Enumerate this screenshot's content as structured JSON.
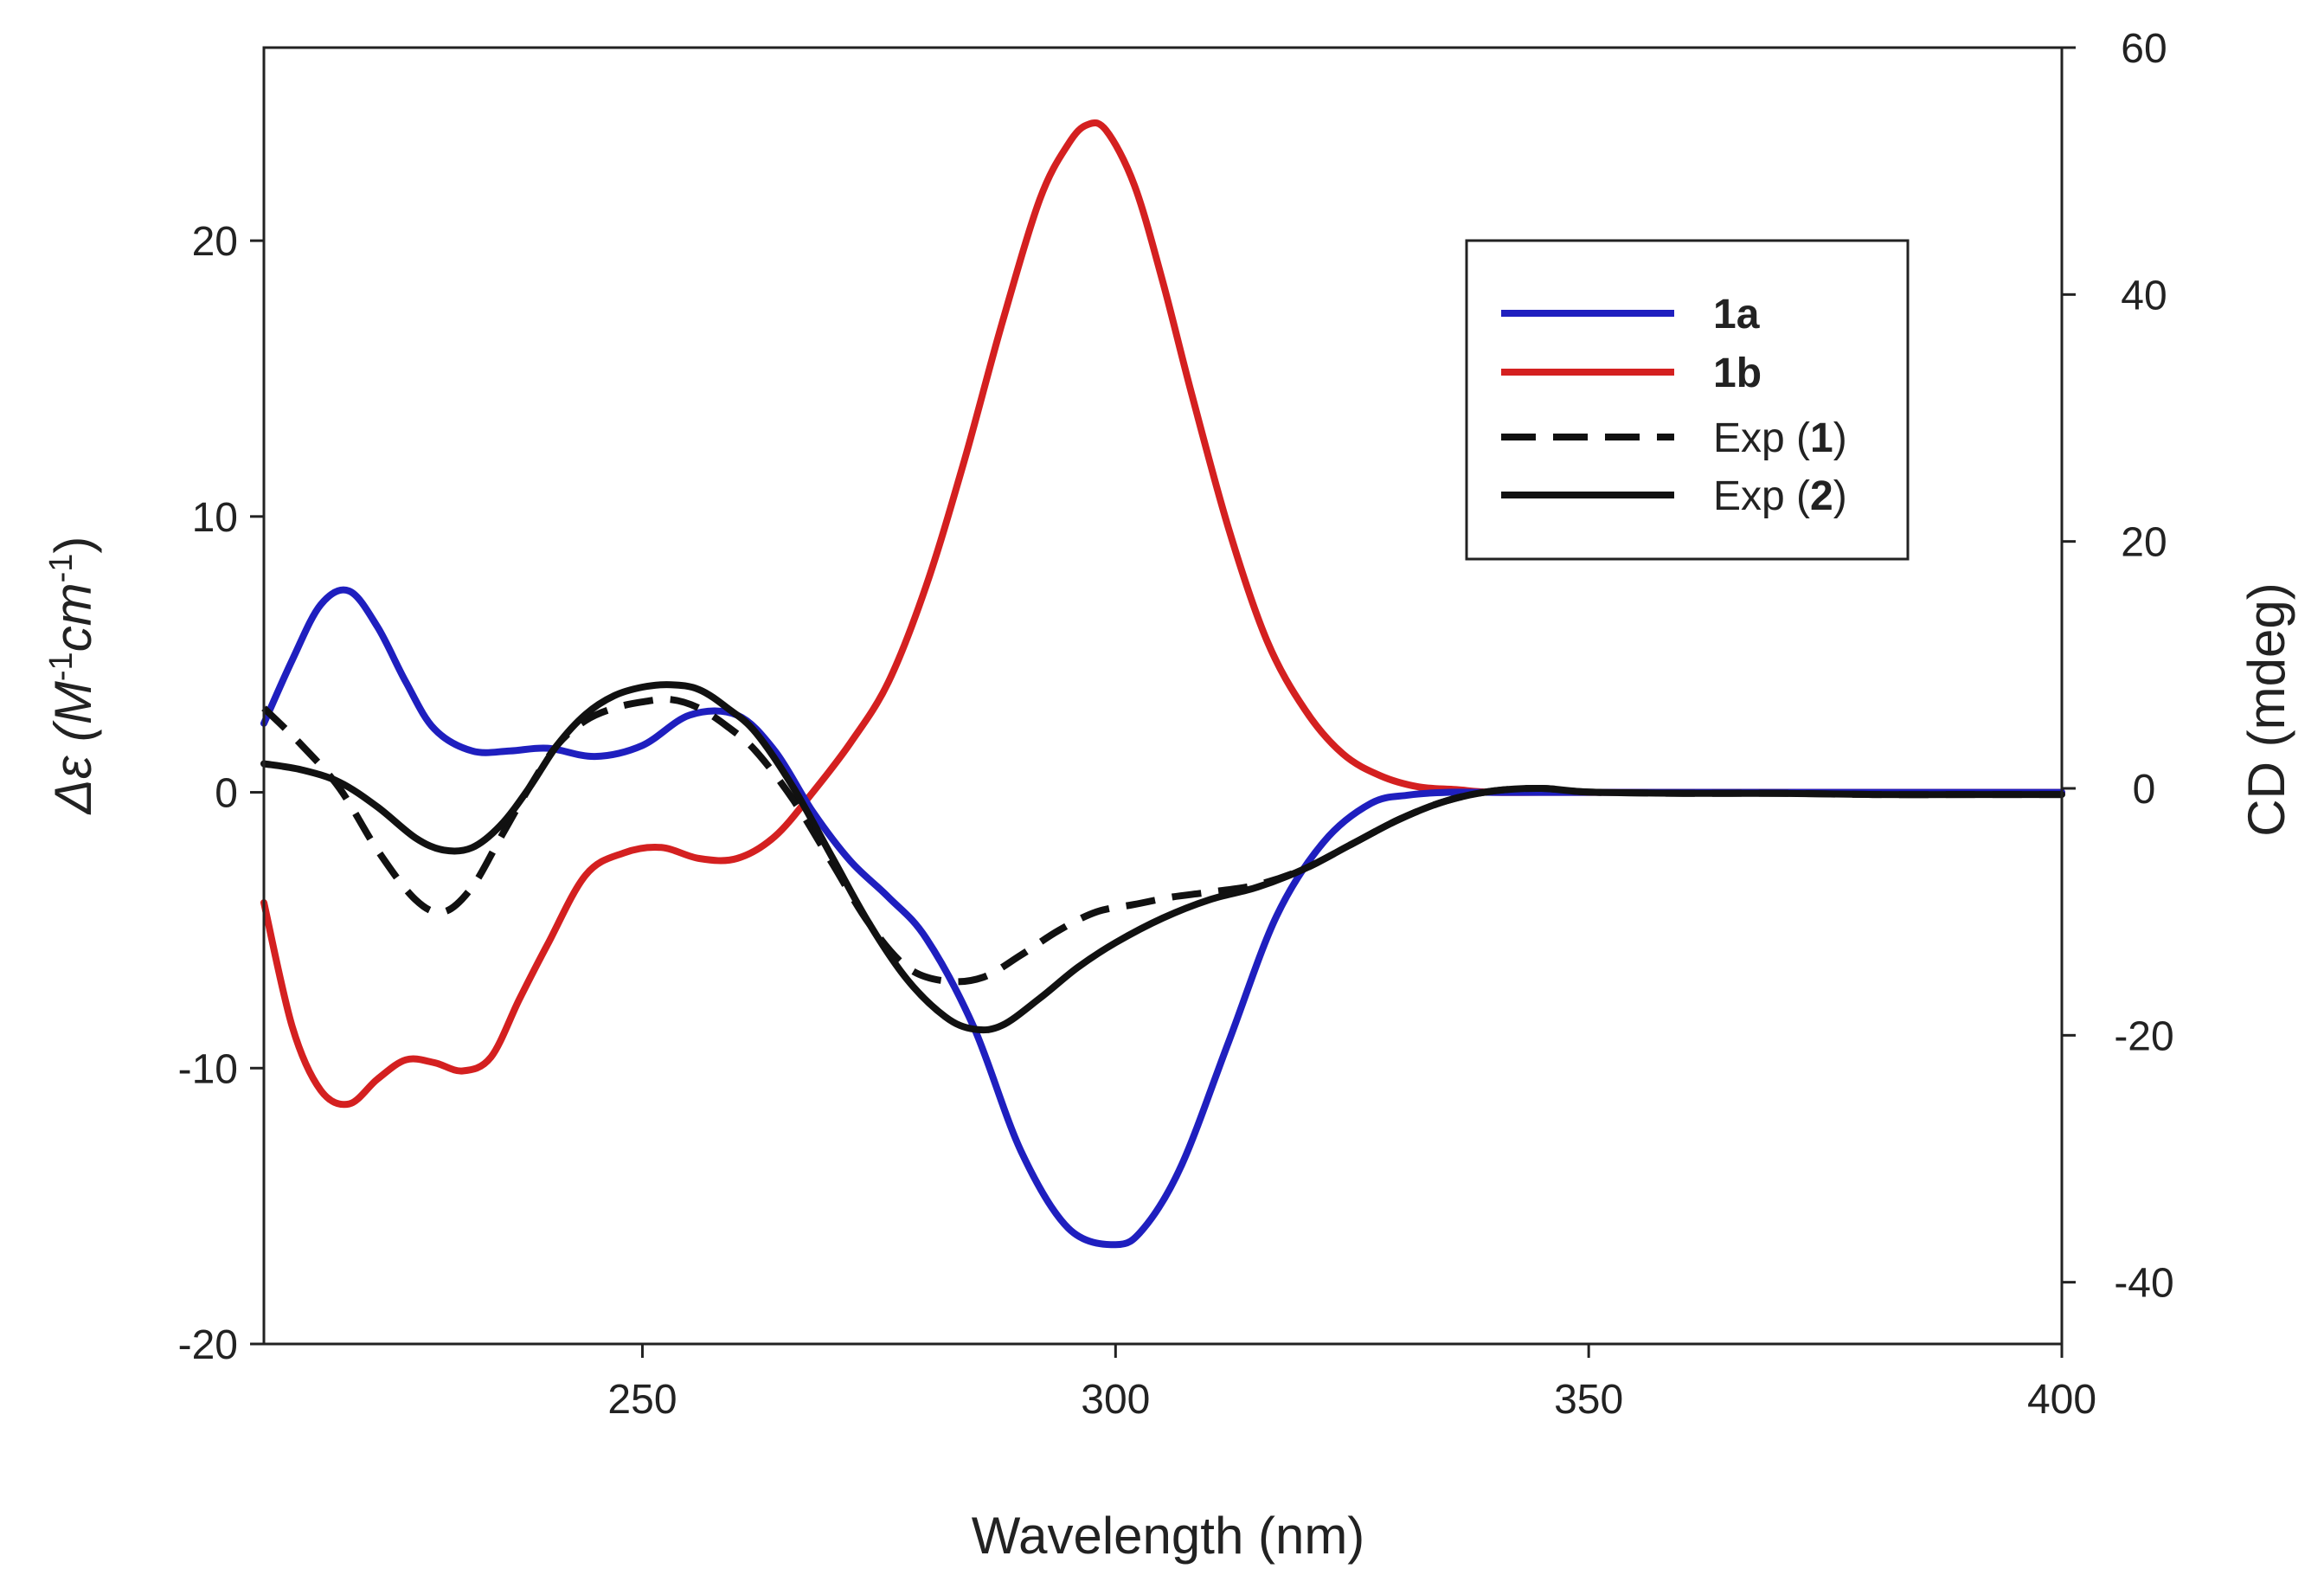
{
  "chart_data": {
    "type": "line",
    "title": "",
    "xlabel": "Wavelength (nm)",
    "ylabel_left": {
      "prefix": "Δε (",
      "unit_base": "M",
      "exp1": "-1",
      "unit2": "cm",
      "exp2": "-1",
      "suffix": ")"
    },
    "ylabel_right": "CD (mdeg)",
    "xlim": [
      210,
      400
    ],
    "ylim_left": [
      -20,
      27
    ],
    "ylim_right": [
      -45,
      60
    ],
    "x_ticks": [
      250,
      300,
      350,
      400
    ],
    "y_ticks_left": [
      -20,
      -10,
      0,
      10,
      20
    ],
    "y_ticks_right": [
      -40,
      -20,
      0,
      20,
      40,
      60
    ],
    "legend_position": "top-right",
    "series": [
      {
        "name": "1a",
        "legend_parts": [
          {
            "text": "1a",
            "bold": true
          }
        ],
        "color": "#1f1fbf",
        "dash": "solid",
        "axis": "left",
        "x": [
          210,
          213,
          216,
          219,
          222,
          225,
          228,
          232,
          236,
          240,
          245,
          250,
          255,
          260,
          264,
          268,
          272,
          276,
          280,
          285,
          290,
          295,
          300,
          303,
          307,
          312,
          317,
          322,
          327,
          331,
          335,
          340,
          350,
          400
        ],
        "values": [
          2.5,
          4.8,
          6.8,
          7.3,
          6.0,
          4.0,
          2.3,
          1.5,
          1.5,
          1.6,
          1.3,
          1.7,
          2.8,
          2.8,
          1.5,
          -0.7,
          -2.5,
          -3.8,
          -5.3,
          -8.5,
          -13.0,
          -15.8,
          -16.4,
          -15.8,
          -13.5,
          -9.0,
          -4.5,
          -1.8,
          -0.4,
          -0.1,
          0,
          0,
          0,
          0
        ]
      },
      {
        "name": "1b",
        "legend_parts": [
          {
            "text": "1b",
            "bold": true
          }
        ],
        "color": "#d42020",
        "dash": "solid",
        "axis": "left",
        "x": [
          210,
          213,
          216,
          219,
          222,
          225,
          228,
          231,
          234,
          237,
          240,
          244,
          248,
          252,
          256,
          260,
          264,
          268,
          272,
          276,
          280,
          284,
          288,
          292,
          295,
          297,
          299,
          302,
          305,
          308,
          312,
          316,
          320,
          324,
          328,
          332,
          336,
          340,
          350,
          400
        ],
        "values": [
          -4.0,
          -8.5,
          -10.8,
          -11.3,
          -10.4,
          -9.7,
          -9.8,
          -10.1,
          -9.6,
          -7.5,
          -5.5,
          -3.0,
          -2.2,
          -2.0,
          -2.4,
          -2.4,
          -1.6,
          0,
          1.8,
          4.0,
          7.5,
          12.0,
          17.0,
          21.5,
          23.5,
          24.2,
          24.0,
          22.0,
          18.5,
          14.5,
          9.5,
          5.5,
          3.0,
          1.4,
          0.6,
          0.2,
          0.1,
          0,
          0,
          0
        ]
      },
      {
        "name": "Exp (1)",
        "legend_parts": [
          {
            "text": "Exp (",
            "bold": false
          },
          {
            "text": "1",
            "bold": true
          },
          {
            "text": ")",
            "bold": false
          }
        ],
        "color": "#111111",
        "dash": "dashed",
        "axis": "right",
        "x": [
          210,
          214,
          218,
          222,
          226,
          229,
          232,
          235,
          238,
          241,
          244,
          247,
          250,
          253,
          256,
          259,
          262,
          266,
          270,
          274,
          278,
          282,
          286,
          290,
          294,
          298,
          302,
          306,
          310,
          315,
          320,
          325,
          330,
          335,
          340,
          345,
          350,
          360,
          370,
          380,
          390,
          400
        ],
        "values": [
          6.5,
          3.5,
          0,
          -5.0,
          -9.0,
          -10.0,
          -8.0,
          -4.0,
          0,
          3.5,
          5.5,
          6.5,
          7.0,
          7.2,
          6.5,
          5.0,
          3.0,
          -1.0,
          -6.0,
          -11.0,
          -14.5,
          -15.6,
          -15.3,
          -13.5,
          -11.5,
          -10.0,
          -9.4,
          -8.8,
          -8.4,
          -7.8,
          -6.5,
          -4.5,
          -2.5,
          -1.0,
          -0.2,
          0,
          -0.3,
          -0.4,
          -0.4,
          -0.5,
          -0.5,
          -0.5
        ]
      },
      {
        "name": "Exp (2)",
        "legend_parts": [
          {
            "text": "Exp (",
            "bold": false
          },
          {
            "text": "2",
            "bold": true
          },
          {
            "text": ")",
            "bold": false
          }
        ],
        "color": "#111111",
        "dash": "solid",
        "axis": "right",
        "x": [
          210,
          214,
          218,
          222,
          226,
          229,
          232,
          235,
          238,
          241,
          244,
          247,
          250,
          253,
          256,
          259,
          262,
          266,
          270,
          274,
          278,
          282,
          285,
          288,
          292,
          296,
          300,
          305,
          310,
          315,
          320,
          325,
          330,
          335,
          340,
          345,
          350,
          360,
          370,
          380,
          390,
          400
        ],
        "values": [
          2.0,
          1.5,
          0.5,
          -1.5,
          -4.0,
          -5.0,
          -4.8,
          -3.0,
          0,
          3.5,
          6.0,
          7.5,
          8.2,
          8.4,
          8.0,
          6.5,
          4.5,
          0,
          -5.5,
          -11.0,
          -15.5,
          -18.5,
          -19.5,
          -19.2,
          -17.0,
          -14.5,
          -12.5,
          -10.5,
          -9.0,
          -8.0,
          -6.5,
          -4.5,
          -2.5,
          -1.0,
          -0.2,
          0,
          -0.3,
          -0.4,
          -0.4,
          -0.5,
          -0.5,
          -0.5
        ]
      }
    ]
  }
}
